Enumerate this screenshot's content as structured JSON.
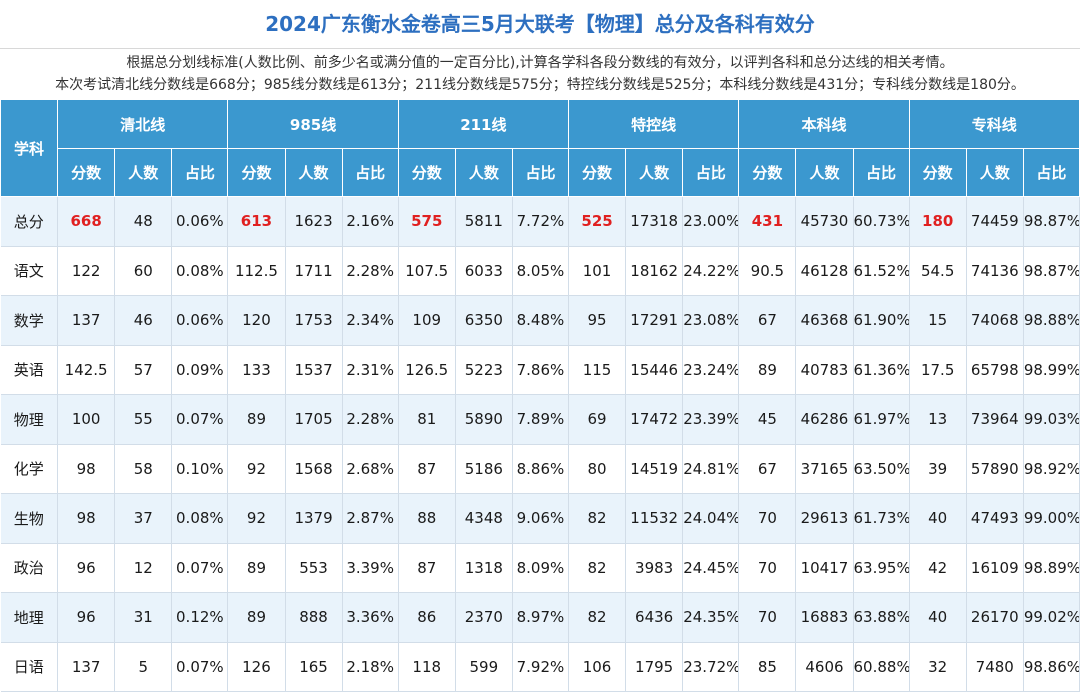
{
  "title": "2024广东衡水金卷高三5月大联考【物理】总分及各科有效分",
  "description": {
    "line1": "根据总分划线标准(人数比例、前多少名或满分值的一定百分比),计算各学科各段分数线的有效分，以评判各科和总分达线的相关考情。",
    "line2": "本次考试清北线分数线是668分；985线分数线是613分；211线分数线是575分；特控线分数线是525分；本科线分数线是431分；专科线分数线是180分。"
  },
  "table": {
    "subject_header": "学科",
    "groups": [
      "清北线",
      "985线",
      "211线",
      "特控线",
      "本科线",
      "专科线"
    ],
    "subheaders": [
      "分数",
      "人数",
      "占比"
    ],
    "rows": [
      {
        "subject": "总分",
        "cells": [
          "668",
          "48",
          "0.06%",
          "613",
          "1623",
          "2.16%",
          "575",
          "5811",
          "7.72%",
          "525",
          "17318",
          "23.00%",
          "431",
          "45730",
          "60.73%",
          "180",
          "74459",
          "98.87%"
        ]
      },
      {
        "subject": "语文",
        "cells": [
          "122",
          "60",
          "0.08%",
          "112.5",
          "1711",
          "2.28%",
          "107.5",
          "6033",
          "8.05%",
          "101",
          "18162",
          "24.22%",
          "90.5",
          "46128",
          "61.52%",
          "54.5",
          "74136",
          "98.87%"
        ]
      },
      {
        "subject": "数学",
        "cells": [
          "137",
          "46",
          "0.06%",
          "120",
          "1753",
          "2.34%",
          "109",
          "6350",
          "8.48%",
          "95",
          "17291",
          "23.08%",
          "67",
          "46368",
          "61.90%",
          "15",
          "74068",
          "98.88%"
        ]
      },
      {
        "subject": "英语",
        "cells": [
          "142.5",
          "57",
          "0.09%",
          "133",
          "1537",
          "2.31%",
          "126.5",
          "5223",
          "7.86%",
          "115",
          "15446",
          "23.24%",
          "89",
          "40783",
          "61.36%",
          "17.5",
          "65798",
          "98.99%"
        ]
      },
      {
        "subject": "物理",
        "cells": [
          "100",
          "55",
          "0.07%",
          "89",
          "1705",
          "2.28%",
          "81",
          "5890",
          "7.89%",
          "69",
          "17472",
          "23.39%",
          "45",
          "46286",
          "61.97%",
          "13",
          "73964",
          "99.03%"
        ]
      },
      {
        "subject": "化学",
        "cells": [
          "98",
          "58",
          "0.10%",
          "92",
          "1568",
          "2.68%",
          "87",
          "5186",
          "8.86%",
          "80",
          "14519",
          "24.81%",
          "67",
          "37165",
          "63.50%",
          "39",
          "57890",
          "98.92%"
        ]
      },
      {
        "subject": "生物",
        "cells": [
          "98",
          "37",
          "0.08%",
          "92",
          "1379",
          "2.87%",
          "88",
          "4348",
          "9.06%",
          "82",
          "11532",
          "24.04%",
          "70",
          "29613",
          "61.73%",
          "40",
          "47493",
          "99.00%"
        ]
      },
      {
        "subject": "政治",
        "cells": [
          "96",
          "12",
          "0.07%",
          "89",
          "553",
          "3.39%",
          "87",
          "1318",
          "8.09%",
          "82",
          "3983",
          "24.45%",
          "70",
          "10417",
          "63.95%",
          "42",
          "16109",
          "98.89%"
        ]
      },
      {
        "subject": "地理",
        "cells": [
          "96",
          "31",
          "0.12%",
          "89",
          "888",
          "3.36%",
          "86",
          "2370",
          "8.97%",
          "82",
          "6436",
          "24.35%",
          "70",
          "16883",
          "63.88%",
          "40",
          "26170",
          "99.02%"
        ]
      },
      {
        "subject": "日语",
        "cells": [
          "137",
          "5",
          "0.07%",
          "126",
          "165",
          "2.18%",
          "118",
          "599",
          "7.92%",
          "106",
          "1795",
          "23.72%",
          "85",
          "4606",
          "60.88%",
          "32",
          "7480",
          "98.86%"
        ]
      }
    ],
    "highlight_row": 0,
    "highlight_color": "#e02020"
  },
  "colors": {
    "title": "#2d6fc0",
    "header_bg": "#3b98cf",
    "stripe": "#e9f3fb"
  }
}
